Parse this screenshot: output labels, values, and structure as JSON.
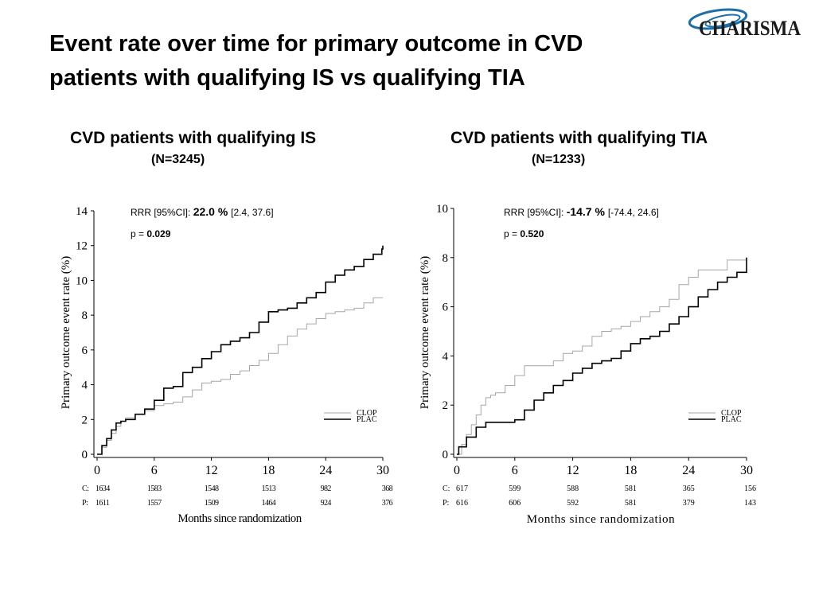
{
  "slide": {
    "title_line1": "Event rate over time for primary outcome in CVD",
    "title_line2": "patients with qualifying IS vs qualifying TIA",
    "logo_text": "CHARISMA"
  },
  "colors": {
    "clop": "#a6a6a6",
    "plac": "#000000",
    "logo_accent": "#1d6fa5"
  },
  "chart_data": [
    {
      "type": "line",
      "panel_title": "CVD patients with qualifying IS",
      "panel_subtitle": "(N=3245)",
      "ylabel": "Primary outcome event rate (%)",
      "xlabel": "Months since randomization",
      "xlim": [
        0,
        30
      ],
      "ylim": [
        0,
        14
      ],
      "x_ticks": [
        0,
        6,
        12,
        18,
        24,
        30
      ],
      "y_ticks": [
        0,
        2,
        4,
        6,
        8,
        10,
        12,
        14
      ],
      "x_tick_labels": [
        "0",
        "6",
        "12",
        "18",
        "24",
        "30"
      ],
      "y_tick_labels": [
        "0",
        "2",
        "4",
        "6",
        "8",
        "10",
        "12",
        "14"
      ],
      "annotation": {
        "rrr_prefix": "RRR [95%CI]:",
        "rrr_value": "22.0 %",
        "rrr_ci": "[2.4, 37.6]",
        "p_prefix": "p =",
        "p_value": "0.029"
      },
      "legend": {
        "position": "bottom-right",
        "entries": [
          "CLOP",
          "PLAC"
        ]
      },
      "series": [
        {
          "name": "CLOP",
          "x": [
            0,
            0.5,
            1,
            1.5,
            2,
            2.5,
            3,
            4,
            5,
            6,
            7,
            8,
            9,
            10,
            11,
            12,
            13,
            14,
            15,
            16,
            17,
            18,
            19,
            20,
            21,
            22,
            23,
            24,
            25,
            26,
            27,
            28,
            29,
            30
          ],
          "y": [
            0,
            0.4,
            0.8,
            1.2,
            1.6,
            1.9,
            2.1,
            2.3,
            2.5,
            2.8,
            2.9,
            3.0,
            3.3,
            3.7,
            4.1,
            4.2,
            4.3,
            4.6,
            4.8,
            5.1,
            5.4,
            5.8,
            6.3,
            6.8,
            7.2,
            7.5,
            7.8,
            8.1,
            8.2,
            8.3,
            8.4,
            8.7,
            9.0,
            9.0
          ]
        },
        {
          "name": "PLAC",
          "x": [
            0,
            0.5,
            1,
            1.5,
            2,
            2.5,
            3,
            4,
            5,
            6,
            7,
            8,
            9,
            10,
            11,
            12,
            13,
            14,
            15,
            16,
            17,
            18,
            19,
            20,
            21,
            22,
            23,
            24,
            25,
            26,
            27,
            28,
            29,
            29.9,
            30
          ],
          "y": [
            0,
            0.5,
            0.9,
            1.4,
            1.8,
            1.9,
            2.0,
            2.3,
            2.6,
            3.1,
            3.8,
            3.9,
            4.7,
            5.0,
            5.5,
            5.9,
            6.3,
            6.5,
            6.7,
            7.0,
            7.6,
            8.2,
            8.3,
            8.4,
            8.7,
            9.0,
            9.3,
            9.9,
            10.3,
            10.6,
            10.8,
            11.2,
            11.5,
            11.8,
            12.0
          ]
        }
      ],
      "at_risk": {
        "rows": [
          {
            "label": "C:",
            "values": [
              "1634",
              "1583",
              "1548",
              "1513",
              "982",
              "368"
            ]
          },
          {
            "label": "P:",
            "values": [
              "1611",
              "1557",
              "1509",
              "1464",
              "924",
              "376"
            ]
          }
        ]
      }
    },
    {
      "type": "line",
      "panel_title": "CVD patients with qualifying TIA",
      "panel_subtitle": "(N=1233)",
      "ylabel": "Primary outcome event rate (%)",
      "xlabel": "Months since randomization",
      "xlim": [
        0,
        30
      ],
      "ylim": [
        0,
        10
      ],
      "x_ticks": [
        0,
        6,
        12,
        18,
        24,
        30
      ],
      "y_ticks": [
        0,
        2,
        4,
        6,
        8,
        10
      ],
      "x_tick_labels": [
        "0",
        "6",
        "12",
        "18",
        "24",
        "30"
      ],
      "y_tick_labels": [
        "0",
        "2",
        "4",
        "6",
        "8",
        "10"
      ],
      "annotation": {
        "rrr_prefix": "RRR [95%CI]:",
        "rrr_value": "-14.7 %",
        "rrr_ci": "[-74.4, 24.6]",
        "p_prefix": "p =",
        "p_value": "0.520"
      },
      "legend": {
        "position": "bottom-right",
        "entries": [
          "CLOP",
          "PLAC"
        ]
      },
      "series": [
        {
          "name": "CLOP",
          "x": [
            0,
            0.5,
            1,
            1.5,
            2,
            2.5,
            3,
            3.5,
            4,
            5,
            6,
            7,
            8,
            9,
            10,
            11,
            12,
            13,
            14,
            15,
            16,
            17,
            18,
            19,
            20,
            21,
            22,
            23,
            24,
            25,
            26,
            27,
            28,
            29,
            30
          ],
          "y": [
            0,
            0.4,
            0.8,
            1.2,
            1.6,
            2.0,
            2.3,
            2.4,
            2.5,
            2.8,
            3.2,
            3.6,
            3.6,
            3.6,
            3.8,
            4.1,
            4.2,
            4.4,
            4.8,
            5.0,
            5.1,
            5.2,
            5.4,
            5.6,
            5.8,
            6.0,
            6.3,
            6.9,
            7.2,
            7.5,
            7.5,
            7.5,
            7.9,
            7.9,
            8.0
          ]
        },
        {
          "name": "PLAC",
          "x": [
            0,
            0.2,
            1,
            2,
            3,
            4,
            5,
            6,
            7,
            8,
            9,
            10,
            11,
            12,
            13,
            14,
            15,
            16,
            17,
            18,
            19,
            20,
            21,
            22,
            23,
            24,
            25,
            26,
            27,
            28,
            29,
            30
          ],
          "y": [
            0,
            0.3,
            0.7,
            1.1,
            1.3,
            1.3,
            1.3,
            1.4,
            1.8,
            2.2,
            2.5,
            2.8,
            3.0,
            3.3,
            3.5,
            3.7,
            3.8,
            3.9,
            4.2,
            4.5,
            4.7,
            4.8,
            5.0,
            5.3,
            5.6,
            6.0,
            6.4,
            6.7,
            7.0,
            7.2,
            7.4,
            8.0
          ]
        }
      ],
      "at_risk": {
        "rows": [
          {
            "label": "C:",
            "values": [
              "617",
              "599",
              "588",
              "581",
              "365",
              "156"
            ]
          },
          {
            "label": "P:",
            "values": [
              "616",
              "606",
              "592",
              "581",
              "379",
              "143"
            ]
          }
        ]
      }
    }
  ]
}
